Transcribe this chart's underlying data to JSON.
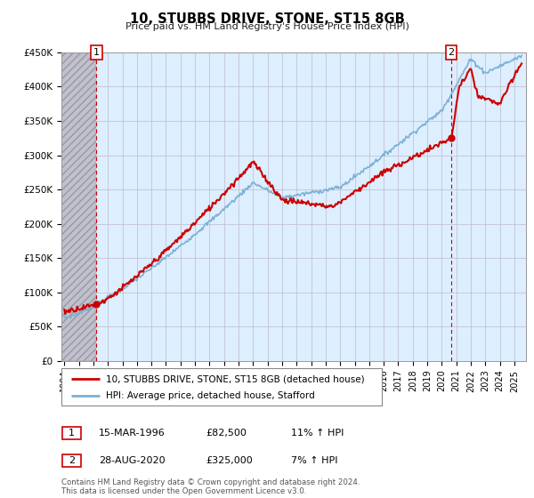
{
  "title": "10, STUBBS DRIVE, STONE, ST15 8GB",
  "subtitle": "Price paid vs. HM Land Registry's House Price Index (HPI)",
  "background_color": "#ffffff",
  "plot_bg_color": "#ddeeff",
  "grid_color": "#bbbbcc",
  "sale1": {
    "date": 1996.21,
    "price": 82500,
    "label": "1"
  },
  "sale2": {
    "date": 2020.66,
    "price": 325000,
    "label": "2"
  },
  "legend_line1": "10, STUBBS DRIVE, STONE, ST15 8GB (detached house)",
  "legend_line2": "HPI: Average price, detached house, Stafford",
  "table_row1": [
    "1",
    "15-MAR-1996",
    "£82,500",
    "11% ↑ HPI"
  ],
  "table_row2": [
    "2",
    "28-AUG-2020",
    "£325,000",
    "7% ↑ HPI"
  ],
  "footer": "Contains HM Land Registry data © Crown copyright and database right 2024.\nThis data is licensed under the Open Government Licence v3.0.",
  "ylim": [
    0,
    450000
  ],
  "xlim": [
    1993.8,
    2025.8
  ],
  "yticks": [
    0,
    50000,
    100000,
    150000,
    200000,
    250000,
    300000,
    350000,
    400000,
    450000
  ],
  "ytick_labels": [
    "£0",
    "£50K",
    "£100K",
    "£150K",
    "£200K",
    "£250K",
    "£300K",
    "£350K",
    "£400K",
    "£450K"
  ],
  "xticks": [
    1994,
    1995,
    1996,
    1997,
    1998,
    1999,
    2000,
    2001,
    2002,
    2003,
    2004,
    2005,
    2006,
    2007,
    2008,
    2009,
    2010,
    2011,
    2012,
    2013,
    2014,
    2015,
    2016,
    2017,
    2018,
    2019,
    2020,
    2021,
    2022,
    2023,
    2024,
    2025
  ],
  "hpi_color": "#7ab0d4",
  "sale_color": "#cc0000",
  "marker_box_color": "#cc0000"
}
